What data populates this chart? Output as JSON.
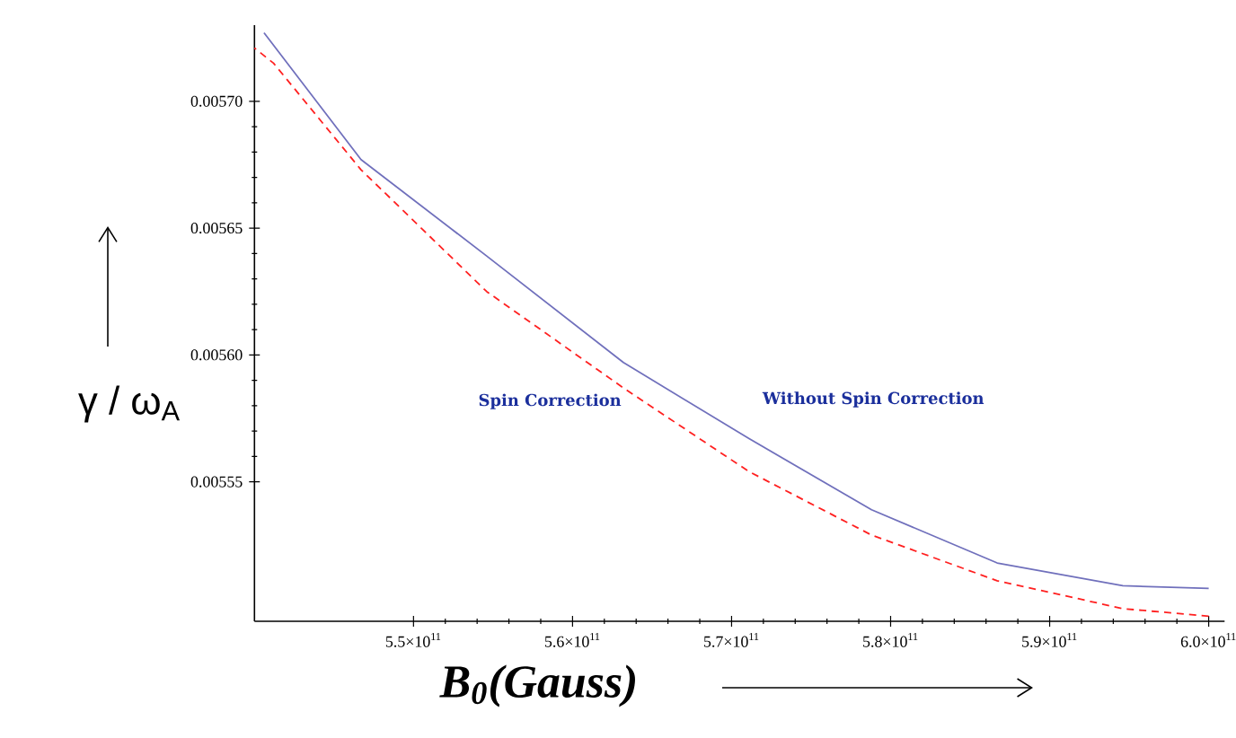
{
  "chart_data": {
    "type": "line",
    "xlabel": "*B*$_{0}$*(Gauss)*",
    "ylabel": "γ / ω$_{A}$",
    "xlim": [
      540000000000.0,
      601000000000.0
    ],
    "ylim": [
      0.005495,
      0.00573
    ],
    "xticks": [
      {
        "value": 550000000000.0,
        "label": "5.5×10$^{11}$"
      },
      {
        "value": 560000000000.0,
        "label": "5.6×10$^{11}$"
      },
      {
        "value": 570000000000.0,
        "label": "5.7×10$^{11}$"
      },
      {
        "value": 580000000000.0,
        "label": "5.8×10$^{11}$"
      },
      {
        "value": 590000000000.0,
        "label": "5.9×10$^{11}$"
      },
      {
        "value": 600000000000.0,
        "label": "6.0×10$^{11}$"
      }
    ],
    "yticks": [
      {
        "value": 0.00555,
        "label": "0.00555"
      },
      {
        "value": 0.0056,
        "label": "0.00560"
      },
      {
        "value": 0.00565,
        "label": "0.00565"
      },
      {
        "value": 0.0057,
        "label": "0.00570"
      }
    ],
    "grid": false,
    "legend": false,
    "marker": "none",
    "series": [
      {
        "name": "Without Spin Correction",
        "color": "#7070bc",
        "line_style": "solid",
        "x": [
          540600000000.0,
          546700000000.0,
          554600000000.0,
          563200000000.0,
          571100000000.0,
          578800000000.0,
          586700000000.0,
          594600000000.0,
          600000000000.0
        ],
        "values": [
          0.005727,
          0.005677,
          0.005639,
          0.005597,
          0.005567,
          0.005539,
          0.005518,
          0.005509,
          0.005508
        ]
      },
      {
        "name": "Spin Correction",
        "color": "#ff2020",
        "line_style": "dashed",
        "x": [
          540000000000.0,
          541200000000.0,
          546700000000.0,
          554600000000.0,
          563200000000.0,
          571100000000.0,
          578800000000.0,
          586700000000.0,
          594600000000.0,
          600000000000.0
        ],
        "values": [
          0.005721,
          0.005715,
          0.005673,
          0.005625,
          0.005587,
          0.005554,
          0.005529,
          0.005511,
          0.0055,
          0.005497
        ]
      }
    ]
  }
}
